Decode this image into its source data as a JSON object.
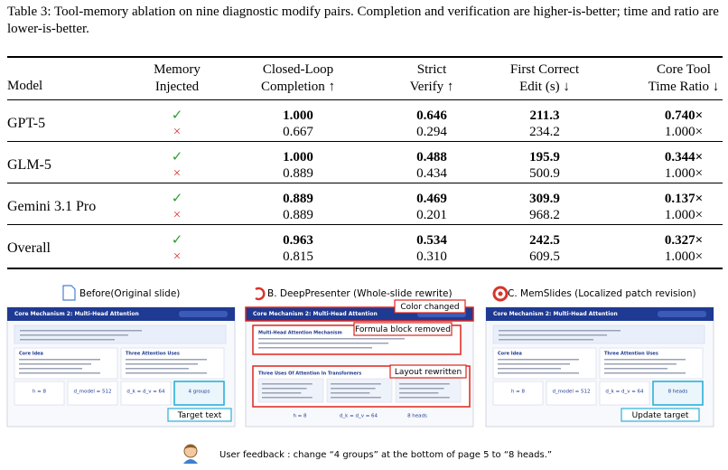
{
  "caption": "Table 3: Tool-memory ablation on nine diagnostic modify pairs. Completion and verification are higher-is-better; time and ratio are lower-is-better.",
  "table": {
    "headers": [
      [
        "Model"
      ],
      [
        "Memory",
        "Injected"
      ],
      [
        "Closed-Loop",
        "Completion ↑"
      ],
      [
        "Strict",
        "Verify ↑"
      ],
      [
        "First Correct",
        "Edit (s) ↓"
      ],
      [
        "Core Tool",
        "Time Ratio ↓"
      ]
    ],
    "groups": [
      {
        "model": "GPT-5",
        "rows": [
          [
            "✓",
            "1.000",
            "0.646",
            "211.3",
            "0.740×"
          ],
          [
            "×",
            "0.667",
            "0.294",
            "234.2",
            "1.000×"
          ]
        ]
      },
      {
        "model": "GLM-5",
        "rows": [
          [
            "✓",
            "1.000",
            "0.488",
            "195.9",
            "0.344×"
          ],
          [
            "×",
            "0.889",
            "0.434",
            "500.9",
            "1.000×"
          ]
        ]
      },
      {
        "model": "Gemini 3.1 Pro",
        "rows": [
          [
            "✓",
            "0.889",
            "0.469",
            "309.9",
            "0.137×"
          ],
          [
            "×",
            "0.889",
            "0.201",
            "968.2",
            "1.000×"
          ]
        ]
      },
      {
        "model": "Overall",
        "rows": [
          [
            "✓",
            "0.963",
            "0.534",
            "242.5",
            "0.327×"
          ],
          [
            "×",
            "0.815",
            "0.310",
            "609.5",
            "1.000×"
          ]
        ]
      }
    ]
  },
  "figure": {
    "panels": [
      {
        "title": "Before(Original slide)",
        "slide_title": "Core Mechanism 2: Multi-Head Attention",
        "cards": [
          "Core Idea",
          "Three Attention Uses"
        ],
        "stats": [
          "h = 8",
          "d_model = 512",
          "d_k = d_v = 64",
          "4 groups"
        ],
        "notes": [
          "Target text"
        ]
      },
      {
        "title": "B. DeepPresenter (Whole-slide rewrite)",
        "slide_title": "Core Mechanism 2: Multi-Head Attention",
        "section_titles": [
          "Multi-Head Attention Mechanism",
          "Three Uses Of Attention In Transformers"
        ],
        "stats": [
          "h = 8",
          "d_k = d_v = 64",
          "8 heads"
        ],
        "notes": [
          "Color changed",
          "Formula block removed",
          "Layout rewritten"
        ]
      },
      {
        "title": "C. MemSlides (Localized patch revision)",
        "slide_title": "Core Mechanism 2: Multi-Head Attention",
        "cards": [
          "Core Idea",
          "Three Attention Uses"
        ],
        "stats": [
          "h = 8",
          "d_model = 512",
          "d_k = d_v = 64",
          "8 heads"
        ],
        "notes": [
          "Update target"
        ]
      }
    ],
    "feedback": "User feedback : change “4 groups” at the bottom of page 5 to “8 heads.”"
  }
}
